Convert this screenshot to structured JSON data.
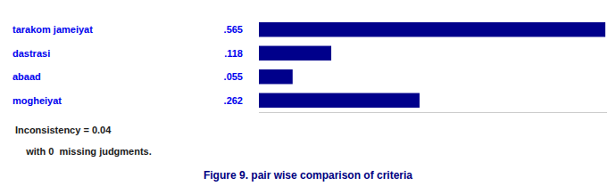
{
  "chart_data": {
    "type": "bar",
    "orientation": "horizontal",
    "title": "Figure 9. pair wise comparison of criteria",
    "categories": [
      "tarakom jameiyat",
      "dastrasi",
      "abaad",
      "mogheiyat"
    ],
    "values": [
      0.565,
      0.118,
      0.055,
      0.262
    ],
    "value_labels": [
      ".565",
      ".118",
      ".055",
      ".262"
    ],
    "data_labels": true,
    "color": "#00008B",
    "xlim": [
      0,
      0.567825
    ],
    "tick_labels": false,
    "grid": false,
    "annotations": [
      "Inconsistency = 0.04",
      "    with 0  missing judgments."
    ]
  }
}
